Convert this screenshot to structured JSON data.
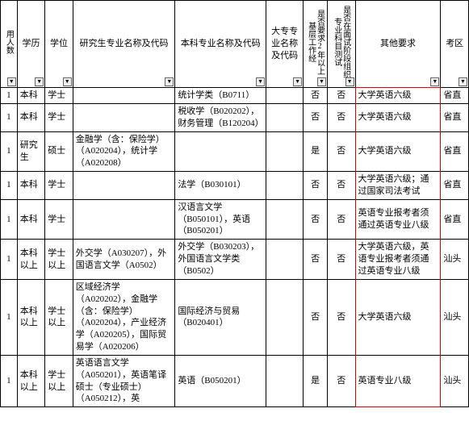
{
  "headers": {
    "c1": "用人数",
    "c2": "学历",
    "c3": "学位",
    "c4": "研究生专业名称及代码",
    "c5": "本科专业名称及代码",
    "c6": "大专专业名称及代码",
    "c7": "是否要求2年以上基层工作经",
    "c8": "是否在面试阶段组织专业科目测试",
    "c9": "其他要求",
    "c10": "考区"
  },
  "rows": [
    {
      "n": "1",
      "edu": "本科",
      "deg": "学士",
      "grad": "",
      "und": "统计学类（B0711）",
      "dz": "",
      "y2": "否",
      "test": "否",
      "other": "大学英语六级",
      "zone": "省直"
    },
    {
      "n": "1",
      "edu": "本科",
      "deg": "学士",
      "grad": "",
      "und": "税收学（B020202），财务管理（B120204）",
      "dz": "",
      "y2": "否",
      "test": "否",
      "other": "大学英语六级",
      "zone": "省直"
    },
    {
      "n": "1",
      "edu": "研究生",
      "deg": "硕士",
      "grad": "金融学（含：保险学）（A020204），统计学（A020208）",
      "und": "",
      "dz": "",
      "y2": "是",
      "test": "否",
      "other": "大学英语六级",
      "zone": "省直"
    },
    {
      "n": "1",
      "edu": "本科",
      "deg": "学士",
      "grad": "",
      "und": "法学（B030101）",
      "dz": "",
      "y2": "否",
      "test": "否",
      "other": "大学英语六级；通过国家司法考试",
      "zone": "省直"
    },
    {
      "n": "1",
      "edu": "本科",
      "deg": "学士",
      "grad": "",
      "und": "汉语言文学（B050101），英语（B050201）",
      "dz": "",
      "y2": "否",
      "test": "否",
      "other": "英语专业报考者须通过英语专业八级",
      "zone": "省直"
    },
    {
      "n": "1",
      "edu": "本科以上",
      "deg": "学士以上",
      "grad": "外交学（A030207），外国语言文学（A0502）",
      "und": "外交学（B030203），外国语言文学类（B0502）",
      "dz": "",
      "y2": "否",
      "test": "否",
      "other": "大学英语六级，英语专业报考者须通过英语专业八级",
      "zone": "汕头"
    },
    {
      "n": "1",
      "edu": "本科以上",
      "deg": "学士以上",
      "grad": "区域经济学（A020202），金融学（含：保险学）（A020204），产业经济学（A020205），国际贸易学（A020206）",
      "und": "国际经济与贸易（B020401）",
      "dz": "",
      "y2": "否",
      "test": "否",
      "other": "大学英语六级",
      "zone": "汕头"
    },
    {
      "n": "1",
      "edu": "本科以上",
      "deg": "学士以上",
      "grad": "英语语言文学（A050201），英语笔译硕士（专业硕士）（A050212），英",
      "und": "英语（B050201）",
      "dz": "",
      "y2": "是",
      "test": "否",
      "other": "英语专业八级",
      "zone": "汕头"
    }
  ],
  "filterGlyph": "▼"
}
